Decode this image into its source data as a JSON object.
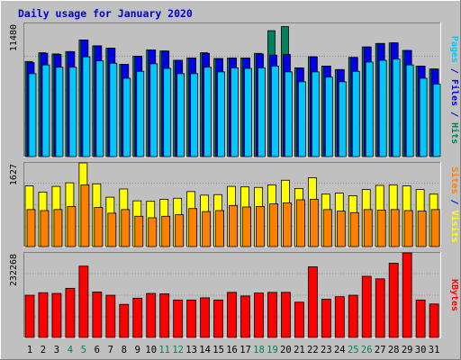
{
  "title": "Daily usage for January 2020",
  "colors": {
    "background": "#c0c0c0",
    "title": "#0000cc",
    "hits": "#00805c",
    "files": "#0000e6",
    "pages": "#00c8ff",
    "visits": "#ffff00",
    "sites": "#ff8000",
    "kbytes": "#ff0000",
    "weekend_label": "#00805c",
    "weekday_label": "#000000"
  },
  "chart_data": [
    {
      "type": "bar",
      "panel": "hits-files-pages",
      "y_max_label": "11480",
      "ylim": [
        0,
        11480
      ],
      "legend": [
        {
          "name": "Pages",
          "color": "#00c8ff"
        },
        {
          "name": "Files",
          "color": "#0000e6"
        },
        {
          "name": "Hits",
          "color": "#00805c"
        }
      ],
      "legend_separator": " / ",
      "categories": [
        "1",
        "2",
        "3",
        "4",
        "5",
        "6",
        "7",
        "8",
        "9",
        "10",
        "11",
        "12",
        "13",
        "14",
        "15",
        "16",
        "17",
        "18",
        "19",
        "20",
        "21",
        "22",
        "23",
        "24",
        "25",
        "26",
        "27",
        "28",
        "29",
        "30",
        "31"
      ],
      "weekend_days": [
        4,
        5,
        11,
        12,
        18,
        19,
        25,
        26
      ],
      "series": [
        {
          "name": "Hits",
          "values": [
            8200,
            8950,
            8850,
            9050,
            10050,
            9550,
            9350,
            7950,
            8650,
            9200,
            9100,
            8300,
            8500,
            8950,
            8450,
            8500,
            8500,
            8900,
            10850,
            11200,
            7650,
            8600,
            7800,
            7500,
            8550,
            9450,
            9750,
            9800,
            9150,
            7800,
            7550
          ]
        },
        {
          "name": "Files",
          "values": [
            8100,
            8900,
            8800,
            9050,
            10050,
            9550,
            9350,
            7950,
            8650,
            9200,
            9100,
            8300,
            8500,
            8900,
            8450,
            8500,
            8500,
            8850,
            8750,
            8800,
            7650,
            8600,
            7800,
            7500,
            8550,
            9450,
            9750,
            9800,
            9150,
            7800,
            7550
          ]
        },
        {
          "name": "Pages",
          "values": [
            7150,
            7900,
            7700,
            7700,
            8600,
            8250,
            8050,
            6750,
            7350,
            8000,
            7600,
            7150,
            7150,
            7700,
            7300,
            7650,
            7600,
            7650,
            7800,
            7300,
            6450,
            7300,
            6850,
            6450,
            7350,
            8150,
            8300,
            8400,
            7900,
            6750,
            6250
          ]
        }
      ]
    },
    {
      "type": "bar",
      "panel": "visits-sites",
      "y_max_label": "1627",
      "ylim": [
        0,
        1627
      ],
      "legend": [
        {
          "name": "Sites",
          "color": "#ff8000"
        },
        {
          "name": "Visits",
          "color": "#ffff00"
        }
      ],
      "legend_separator": " / ",
      "categories": [
        "1",
        "2",
        "3",
        "4",
        "5",
        "6",
        "7",
        "8",
        "9",
        "10",
        "11",
        "12",
        "13",
        "14",
        "15",
        "16",
        "17",
        "18",
        "19",
        "20",
        "21",
        "22",
        "23",
        "24",
        "25",
        "26",
        "27",
        "28",
        "29",
        "30",
        "31"
      ],
      "series": [
        {
          "name": "Visits",
          "values": [
            1180,
            1060,
            1170,
            1240,
            1627,
            1220,
            960,
            1120,
            890,
            880,
            920,
            940,
            1070,
            1000,
            1010,
            1170,
            1160,
            1150,
            1200,
            1290,
            1130,
            1340,
            1020,
            1040,
            990,
            1110,
            1190,
            1200,
            1180,
            1110,
            1020
          ]
        },
        {
          "name": "Sites",
          "values": [
            720,
            700,
            720,
            780,
            1200,
            760,
            650,
            720,
            590,
            560,
            590,
            620,
            740,
            680,
            700,
            800,
            770,
            780,
            830,
            850,
            910,
            920,
            720,
            690,
            660,
            720,
            710,
            720,
            700,
            690,
            720
          ]
        }
      ]
    },
    {
      "type": "bar",
      "panel": "kbytes",
      "y_max_label": "232268",
      "ylim": [
        0,
        232268
      ],
      "legend": [
        {
          "name": "KBytes",
          "color": "#ff0000"
        }
      ],
      "legend_separator": "",
      "categories": [
        "1",
        "2",
        "3",
        "4",
        "5",
        "6",
        "7",
        "8",
        "9",
        "10",
        "11",
        "12",
        "13",
        "14",
        "15",
        "16",
        "17",
        "18",
        "19",
        "20",
        "21",
        "22",
        "23",
        "24",
        "25",
        "26",
        "27",
        "28",
        "29",
        "30",
        "31"
      ],
      "series": [
        {
          "name": "KBytes",
          "values": [
            116000,
            123000,
            121000,
            135000,
            196000,
            125000,
            116000,
            91000,
            108000,
            121000,
            120000,
            103000,
            103000,
            109000,
            103000,
            124000,
            114000,
            122000,
            124000,
            124000,
            97000,
            194000,
            105000,
            112000,
            116000,
            168000,
            161000,
            204000,
            232268,
            103000,
            92000
          ]
        }
      ]
    }
  ]
}
